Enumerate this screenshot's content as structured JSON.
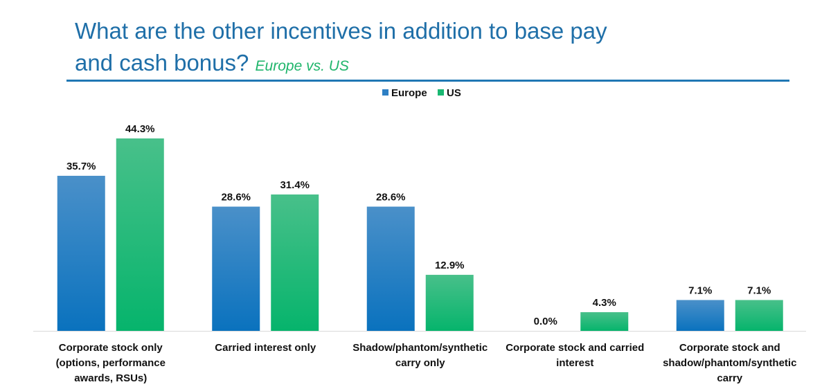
{
  "header": {
    "title": "What are the other incentives in addition to base pay and cash bonus?",
    "title_line1": "What are the other incentives in addition to base pay",
    "title_line2": "and cash bonus?",
    "subtitle": "Europe vs. US"
  },
  "chart_data": {
    "type": "bar",
    "categories": [
      [
        "Corporate stock only",
        "(options, performance",
        "awards, RSUs)"
      ],
      [
        "Carried interest only"
      ],
      [
        "Shadow/phantom/synthetic",
        "carry only"
      ],
      [
        "Corporate stock and carried",
        "interest"
      ],
      [
        "Corporate stock and",
        "shadow/phantom/synthetic",
        "carry"
      ]
    ],
    "series": [
      {
        "name": "Europe",
        "values": [
          35.7,
          28.6,
          28.6,
          0.0,
          7.1
        ],
        "labels": [
          "35.7%",
          "28.6%",
          "28.6%",
          "0.0%",
          "7.1%"
        ],
        "color": "#2e7fc4"
      },
      {
        "name": "US",
        "values": [
          44.3,
          31.4,
          12.9,
          4.3,
          7.1
        ],
        "labels": [
          "44.3%",
          "31.4%",
          "12.9%",
          "4.3%",
          "7.1%"
        ],
        "color": "#1ab872"
      }
    ],
    "ylim": [
      0,
      50
    ],
    "legend": "top-center",
    "grid": false
  }
}
